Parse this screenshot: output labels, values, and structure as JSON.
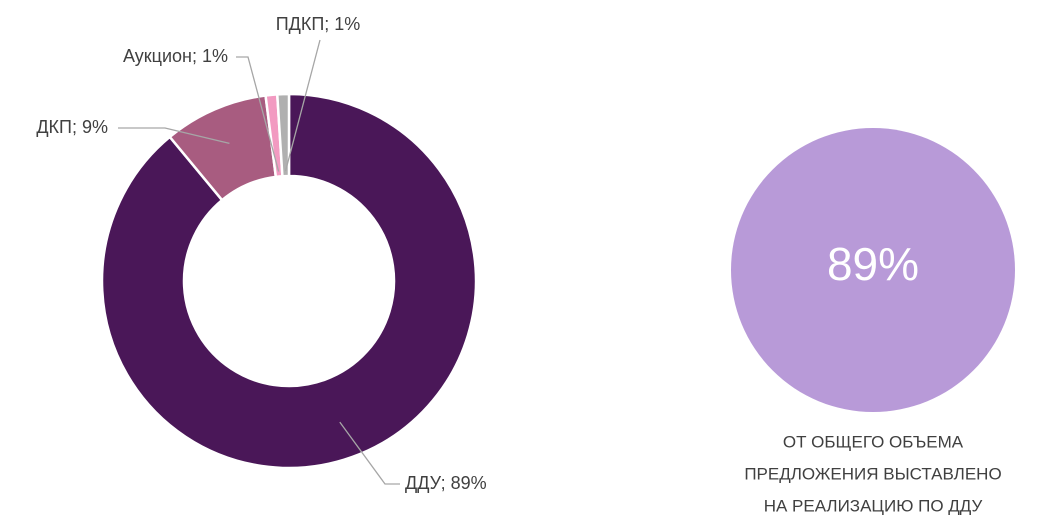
{
  "chart_data": {
    "type": "donut",
    "values": [
      89,
      9,
      1,
      1
    ],
    "value_labels": [
      "ДДУ; 89%",
      "ДКП; 9%",
      "Аукцион; 1%",
      "ПДКП; 1%"
    ],
    "colors": [
      "#4a1758",
      "#a85c80",
      "#f29ac1",
      "#b0b0b0"
    ]
  },
  "highlight": {
    "label": "89%",
    "color": "#b89ad8",
    "caption": [
      "ОТ ОБЩЕГО ОБЪЕМА",
      "ПРЕДЛОЖЕНИЯ ВЫСТАВЛЕНО",
      "НА РЕАЛИЗАЦИЮ ПО ДДУ"
    ]
  }
}
